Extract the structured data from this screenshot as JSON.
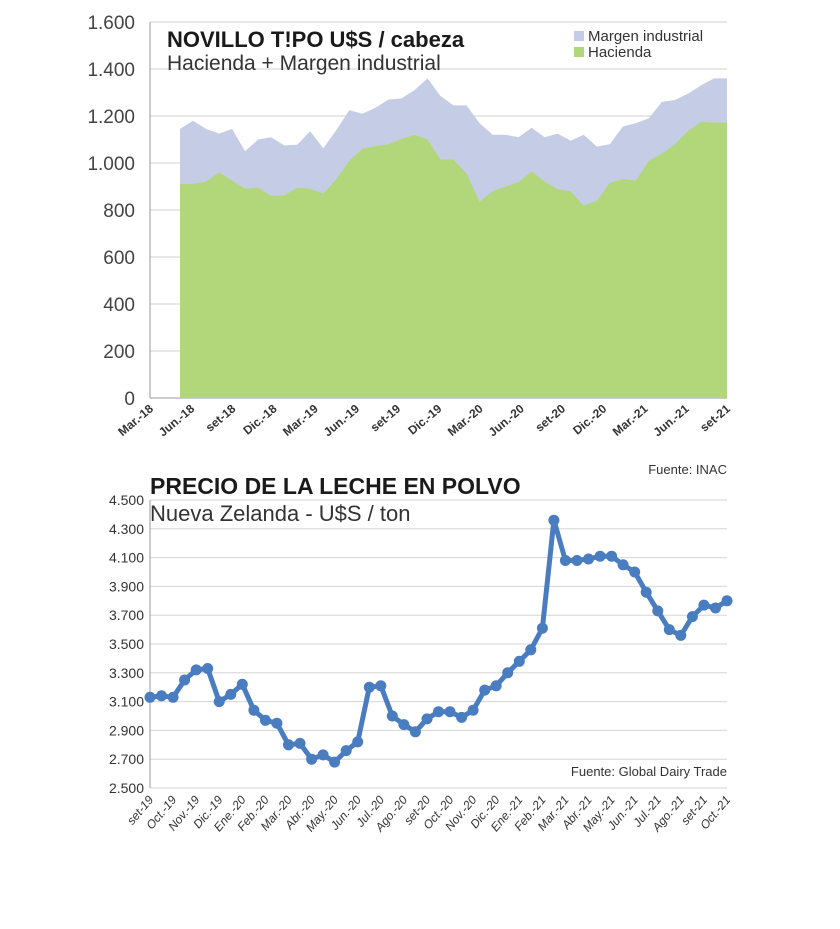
{
  "chart_data": [
    {
      "type": "area",
      "title": "NOVILLO T!PO U$S / cabeza",
      "subtitle": "Hacienda + Margen industrial",
      "source": "Fuente: INAC",
      "ylim": [
        0,
        1600
      ],
      "yticks": [
        0,
        200,
        400,
        600,
        800,
        1000,
        1200,
        1400,
        1600
      ],
      "ytick_labels": [
        "0",
        "200",
        "400",
        "600",
        "800",
        "1.000",
        "1.200",
        "1.400",
        "1.600"
      ],
      "xtick_labels": [
        "Mar.-18",
        "Jun.-18",
        "set-18",
        "Dic.-18",
        "Mar.-19",
        "Jun.-19",
        "set-19",
        "Dic.-19",
        "Mar.-20",
        "Jun.-20",
        "set-20",
        "Dic.-20",
        "Mar.-21",
        "Jun.-21",
        "set-21"
      ],
      "x": [
        "Mar.-18",
        "Abr.-18",
        "May.-18",
        "Jun.-18",
        "Jul.-18",
        "Ago.-18",
        "set-18",
        "Oct.-18",
        "Nov.-18",
        "Dic.-18",
        "Ene.-19",
        "Feb.-19",
        "Mar.-19",
        "Abr.-19",
        "May.-19",
        "Jun.-19",
        "Jul.-19",
        "Ago.-19",
        "set-19",
        "Oct.-19",
        "Nov.-19",
        "Dic.-19",
        "Ene.-20",
        "Feb.-20",
        "Mar.-20",
        "Abr.-20",
        "May.-20",
        "Jun.-20",
        "Jul.-20",
        "Ago.-20",
        "set-20",
        "Oct.-20",
        "Nov.-20",
        "Dic.-20",
        "Ene.-21",
        "Feb.-21",
        "Mar.-21",
        "Abr.-21",
        "May.-21",
        "Jun.-21",
        "Jul.-21",
        "Ago.-21",
        "set-21"
      ],
      "series": [
        {
          "name": "Hacienda",
          "color": "#b2d67a",
          "values": [
            910,
            912,
            920,
            960,
            925,
            890,
            895,
            860,
            862,
            895,
            890,
            870,
            930,
            1010,
            1060,
            1072,
            1080,
            1102,
            1120,
            1100,
            1015,
            1015,
            955,
            835,
            880,
            900,
            918,
            965,
            920,
            888,
            880,
            818,
            840,
            915,
            932,
            925,
            1010,
            1040,
            1080,
            1135,
            1175,
            1172,
            1172
          ]
        },
        {
          "name": "Margen industrial",
          "color": "#c5cde6",
          "values": [
            1145,
            1180,
            1145,
            1125,
            1145,
            1050,
            1100,
            1110,
            1075,
            1078,
            1135,
            1062,
            1140,
            1225,
            1210,
            1235,
            1270,
            1275,
            1310,
            1360,
            1285,
            1245,
            1245,
            1170,
            1120,
            1120,
            1110,
            1150,
            1110,
            1125,
            1095,
            1120,
            1070,
            1080,
            1155,
            1170,
            1190,
            1260,
            1268,
            1295,
            1330,
            1360,
            1360
          ]
        }
      ]
    },
    {
      "type": "line",
      "title": "PRECIO DE LA LECHE EN POLVO",
      "subtitle": "Nueva Zelanda - U$S / ton",
      "source": "Fuente: Global Dairy Trade",
      "color": "#4a7cc0",
      "ylim": [
        2500,
        4500
      ],
      "yticks": [
        2500,
        2700,
        2900,
        3100,
        3300,
        3500,
        3700,
        3900,
        4100,
        4300,
        4500
      ],
      "ytick_labels": [
        "2.500",
        "2.700",
        "2.900",
        "3.100",
        "3.300",
        "3.500",
        "3.700",
        "3.900",
        "4.100",
        "4.300",
        "4.500"
      ],
      "xtick_labels": [
        "set-19",
        "Oct.-19",
        "Nov.-19",
        "Dic.-19",
        "Ene.-20",
        "Feb.-20",
        "Mar.-20",
        "Abr.-20",
        "May.-20",
        "Jun.-20",
        "Jul.-20",
        "Ago.-20",
        "set-20",
        "Oct.-20",
        "Nov.-20",
        "Dic.-20",
        "Ene.-21",
        "Feb.-21",
        "Mar.-21",
        "Abr.-21",
        "May.-21",
        "Jun.-21",
        "Jul.-21",
        "Ago.-21",
        "set-21",
        "Oct.-21"
      ],
      "values": [
        3130,
        3140,
        3130,
        3250,
        3320,
        3330,
        3100,
        3150,
        3220,
        3040,
        2970,
        2950,
        2800,
        2810,
        2700,
        2730,
        2680,
        2760,
        2820,
        3200,
        3210,
        3000,
        2940,
        2890,
        2980,
        3030,
        3030,
        2990,
        3040,
        3180,
        3210,
        3300,
        3380,
        3460,
        3610,
        4360,
        4080,
        4080,
        4090,
        4110,
        4110,
        4050,
        4000,
        3860,
        3730,
        3600,
        3560,
        3690,
        3770,
        3750,
        3800
      ]
    }
  ]
}
